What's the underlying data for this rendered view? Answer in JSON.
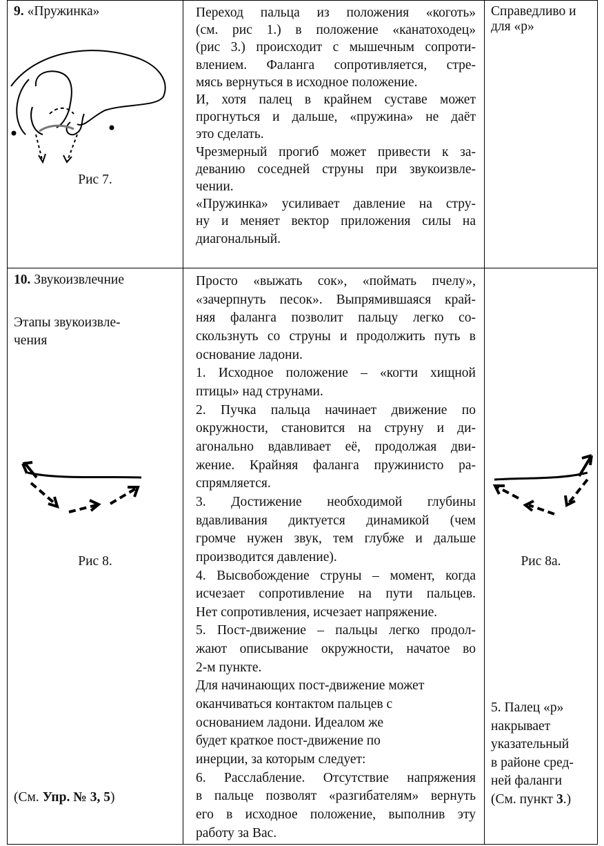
{
  "table": {
    "rows": [
      {
        "cells": [
          {
            "number": "9.",
            "title": "«Пружинка»",
            "caption": "Рис 7."
          },
          {
            "paragraphs": [
              {
                "lines": [
                  "Переход пальца из положения «коготь»",
                  "(см. рис 1.) в положение «канатоходец»",
                  "(рис 3.) происходит с мышечным сопроти-",
                  "влением. Фаланга сопротивляется, стре-",
                  "мясь вернуться в исходное положение."
                ]
              },
              {
                "lines": [
                  "И, хотя палец в крайнем суставе может",
                  "прогнуться и дальше, «пружина» не даёт",
                  "это сделать."
                ]
              },
              {
                "lines": [
                  "Чрезмерный прогиб может привести к за-",
                  "деванию соседней струны при звукоизвле-",
                  "чении."
                ]
              },
              {
                "lines": [
                  "«Пружинка» усиливает давление на стру-",
                  "ну и меняет вектор приложения силы на",
                  "диагональный."
                ]
              }
            ]
          },
          {
            "lines": [
              "Справедливо и",
              "для «р»"
            ]
          }
        ]
      },
      {
        "cells": [
          {
            "number": "10.",
            "title": "Звукоизвлечние",
            "subtitle": [
              "Этапы звукоизвле-",
              "чения"
            ],
            "caption": "Рис 8.",
            "reference": {
              "prefix": "(См.",
              "bold": "Упр. № 3, 5",
              "suffix": ")"
            }
          },
          {
            "paragraphs": [
              {
                "lines": [
                  "Просто «выжать сок», «поймать пчелу»,",
                  "«зачерпнуть песок». Выпрямившаяся край-",
                  "няя фаланга позволит пальцу легко со-",
                  "скользнуть со струны и продолжить путь в",
                  "основание ладони."
                ]
              },
              {
                "lines": [
                  "1. Исходное положение – «когти хищной",
                  "птицы» над струнами."
                ]
              },
              {
                "lines": [
                  "2. Пучка пальца начинает движение по",
                  "окружности, становится на струну и ди-",
                  "агонально вдавливает её, продолжая дви-",
                  "жение. Крайняя фаланга пружинисто ра-",
                  "спрямляется."
                ]
              },
              {
                "lines": [
                  "3. Достижение необходимой глубины",
                  "вдавливания диктуется динамикой (чем",
                  "громче нужен звук, тем глубже  и дальше",
                  "производится давление)."
                ]
              },
              {
                "lines": [
                  "4. Высвобождение струны – момент, когда",
                  "исчезает сопротивление на пути пальцев.",
                  "Нет сопротивления, исчезает напряжение."
                ]
              },
              {
                "lines": [
                  "5. Пост-движение – пальцы легко продол-",
                  "жают описывание окружности, начатое во",
                  "2-м пункте."
                ]
              },
              {
                "align": "left",
                "lines": [
                  "Для начинающих пост-движение может",
                  "оканчиваться контактом пальцев с",
                  "основанием ладони. Идеалом же",
                  "будет краткое пост-движение по",
                  "инерции, за которым следует:"
                ]
              },
              {
                "lines": [
                  "6. Расслабление. Отсутствие напряжения",
                  "в пальце позволят «разгибателям» вернуть",
                  "его в исходное положение, выполнив эту",
                  "работу за Вас."
                ]
              }
            ]
          },
          {
            "caption": "Рис 8a.",
            "note": {
              "lines": [
                "5. Палец «р»",
                "накрывает",
                "указательный",
                "в районе сред-",
                "ней фаланги"
              ],
              "last": {
                "prefix": "(См. пункт",
                "bold": "3",
                "suffix": ".)"
              }
            }
          }
        ]
      }
    ]
  }
}
